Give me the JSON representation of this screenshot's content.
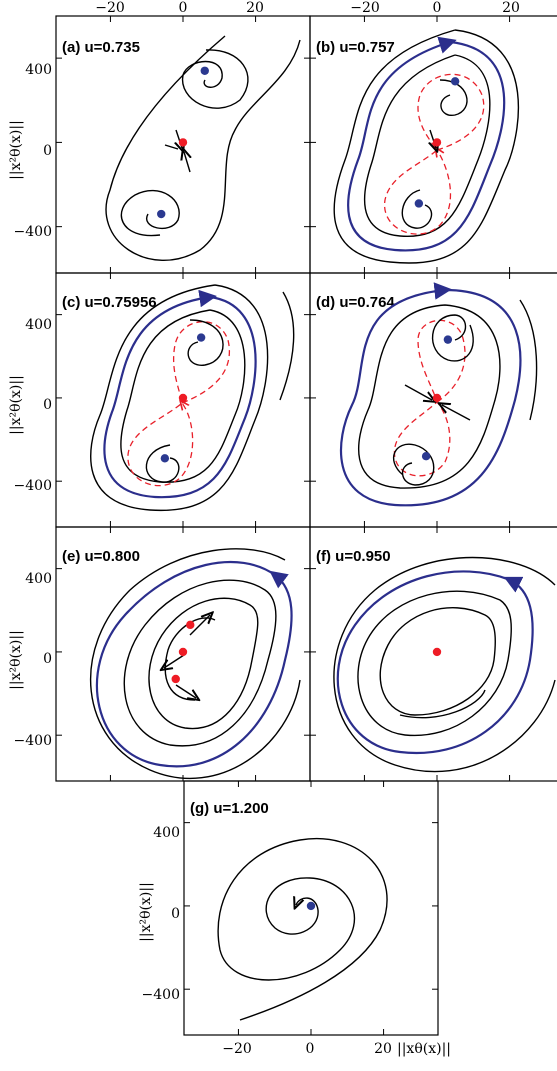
{
  "figure": {
    "x_axis_label": "||xθ(x)||",
    "y_axis_label": "||x²θ(x)||"
  },
  "chart_data": [
    {
      "panel": "a",
      "title": "(a) u=0.735",
      "type": "scatter",
      "xlim": [
        -35,
        35
      ],
      "ylim": [
        -620,
        600
      ],
      "x_ticks": [
        -20,
        0,
        20
      ],
      "y_ticks": [
        -400,
        0,
        400
      ],
      "x_tick_labels_top": [
        "−20",
        "0",
        "20"
      ],
      "y_tick_labels": [
        "−400",
        "0",
        "400"
      ],
      "fixed_points": [
        {
          "x": 6,
          "y": 340,
          "kind": "stable-focus",
          "color": "#2b3990"
        },
        {
          "x": -6,
          "y": -340,
          "kind": "stable-focus",
          "color": "#2b3990"
        },
        {
          "x": 0,
          "y": 0,
          "kind": "saddle",
          "color": "#ee1c25"
        }
      ],
      "limit_cycle": "none",
      "unstable_cycle": "none"
    },
    {
      "panel": "b",
      "title": "(b) u=0.757",
      "type": "scatter",
      "xlim": [
        -35,
        35
      ],
      "ylim": [
        -620,
        600
      ],
      "x_ticks": [
        -20,
        0,
        20
      ],
      "y_ticks": [
        -400,
        0,
        400
      ],
      "x_tick_labels_top": [
        "−20",
        "0",
        "20"
      ],
      "fixed_points": [
        {
          "x": 5,
          "y": 290,
          "kind": "stable-focus",
          "color": "#2b3990"
        },
        {
          "x": -5,
          "y": -290,
          "kind": "stable-focus",
          "color": "#2b3990"
        },
        {
          "x": 0,
          "y": 0,
          "kind": "saddle",
          "color": "#ee1c25"
        }
      ],
      "limit_cycle": "large-stable",
      "unstable_cycle": "figure-eight-around-foci"
    },
    {
      "panel": "c",
      "title": "(c) u=0.75956",
      "type": "scatter",
      "xlim": [
        -35,
        35
      ],
      "ylim": [
        -620,
        600
      ],
      "x_ticks": [
        -20,
        0,
        20
      ],
      "y_ticks": [
        -400,
        0,
        400
      ],
      "y_tick_labels": [
        "−400",
        "0",
        "400"
      ],
      "fixed_points": [
        {
          "x": 5,
          "y": 290,
          "kind": "stable-focus",
          "color": "#2b3990"
        },
        {
          "x": -5,
          "y": -290,
          "kind": "stable-focus",
          "color": "#2b3990"
        },
        {
          "x": 0,
          "y": 0,
          "kind": "saddle",
          "color": "#ee1c25"
        }
      ],
      "limit_cycle": "large-stable",
      "unstable_cycle": "homoclinic-figure-eight"
    },
    {
      "panel": "d",
      "title": "(d) u=0.764",
      "type": "scatter",
      "xlim": [
        -35,
        35
      ],
      "ylim": [
        -620,
        600
      ],
      "x_ticks": [
        -20,
        0,
        20
      ],
      "y_ticks": [
        -400,
        0,
        400
      ],
      "fixed_points": [
        {
          "x": 3,
          "y": 280,
          "kind": "stable-focus",
          "color": "#2b3990"
        },
        {
          "x": -3,
          "y": -280,
          "kind": "stable-focus",
          "color": "#2b3990"
        },
        {
          "x": 0,
          "y": 0,
          "kind": "saddle",
          "color": "#ee1c25"
        }
      ],
      "limit_cycle": "large-stable",
      "unstable_cycle": "two-small-around-foci"
    },
    {
      "panel": "e",
      "title": "(e) u=0.800",
      "type": "scatter",
      "xlim": [
        -35,
        35
      ],
      "ylim": [
        -620,
        600
      ],
      "x_ticks": [
        -20,
        0,
        20
      ],
      "y_ticks": [
        -400,
        0,
        400
      ],
      "y_tick_labels": [
        "−400",
        "0",
        "400"
      ],
      "fixed_points": [
        {
          "x": 2,
          "y": 130,
          "kind": "unstable",
          "color": "#ee1c25"
        },
        {
          "x": 0,
          "y": 0,
          "kind": "unstable",
          "color": "#ee1c25"
        },
        {
          "x": -2,
          "y": -130,
          "kind": "unstable",
          "color": "#ee1c25"
        }
      ],
      "limit_cycle": "large-stable",
      "unstable_cycle": "none"
    },
    {
      "panel": "f",
      "title": "(f) u=0.950",
      "type": "scatter",
      "xlim": [
        -35,
        35
      ],
      "ylim": [
        -620,
        600
      ],
      "x_ticks": [
        -20,
        0,
        20
      ],
      "y_ticks": [
        -400,
        0,
        400
      ],
      "fixed_points": [
        {
          "x": 0,
          "y": 0,
          "kind": "unstable-focus",
          "color": "#ee1c25"
        }
      ],
      "limit_cycle": "large-stable",
      "unstable_cycle": "none"
    },
    {
      "panel": "g",
      "title": "(g) u=1.200",
      "type": "scatter",
      "xlim": [
        -35,
        35
      ],
      "ylim": [
        -620,
        600
      ],
      "x_ticks": [
        -20,
        0,
        20
      ],
      "y_ticks": [
        -400,
        0,
        400
      ],
      "x_tick_labels_bottom": [
        "−20",
        "0",
        "20"
      ],
      "y_tick_labels": [
        "−400",
        "0",
        "400"
      ],
      "fixed_points": [
        {
          "x": 0,
          "y": 0,
          "kind": "stable-focus",
          "color": "#2b3990"
        }
      ],
      "limit_cycle": "none",
      "unstable_cycle": "none"
    }
  ]
}
